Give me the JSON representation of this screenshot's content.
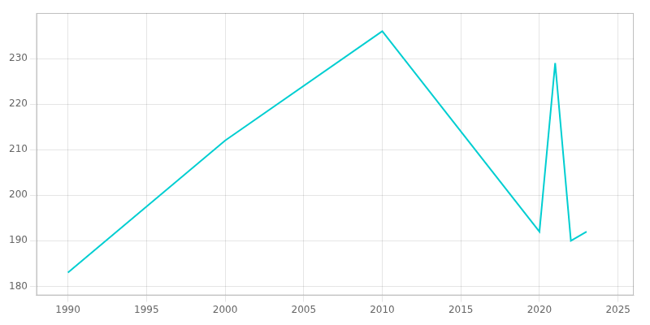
{
  "chart_data": {
    "type": "line",
    "x": [
      1990,
      2000,
      2010,
      2020,
      2021,
      2022,
      2023
    ],
    "values": [
      183,
      212,
      236,
      192,
      229,
      190,
      192
    ],
    "color": "#00CED1",
    "xlim": [
      1988,
      2026
    ],
    "ylim": [
      178,
      240
    ],
    "xticks": [
      1990,
      1995,
      2000,
      2005,
      2010,
      2015,
      2020,
      2025
    ],
    "yticks": [
      180,
      190,
      200,
      210,
      220,
      230
    ],
    "grid": true
  }
}
